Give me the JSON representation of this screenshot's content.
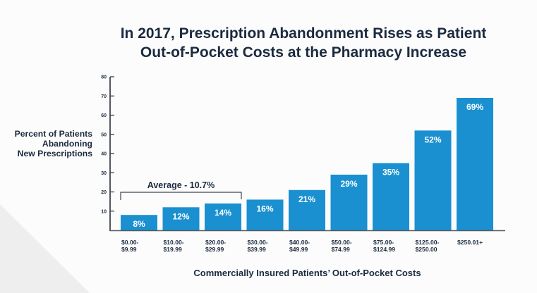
{
  "chart_data": {
    "type": "bar",
    "title": [
      "In 2017, Prescription Abandonment Rises as Patient",
      "Out-of-Pocket Costs at the Pharmacy Increase"
    ],
    "xlabel": "Commercially Insured Patients’ Out-of-Pocket Costs",
    "ylabel": [
      "Percent of Patients",
      "Abandoning",
      "New Prescriptions"
    ],
    "ylim": [
      0,
      80
    ],
    "yticks": [
      10,
      20,
      30,
      40,
      50,
      60,
      70,
      80
    ],
    "grid": false,
    "legend": "none",
    "categories": [
      [
        "$0.00-",
        "$9.99"
      ],
      [
        "$10.00-",
        "$19.99"
      ],
      [
        "$20.00-",
        "$29.99"
      ],
      [
        "$30.00-",
        "$39.99"
      ],
      [
        "$40.00-",
        "$49.99"
      ],
      [
        "$50.00-",
        "$74.99"
      ],
      [
        "$75.00-",
        "$124.99"
      ],
      [
        "$125.00-",
        "$250.00"
      ],
      [
        "$250.01+"
      ]
    ],
    "values": [
      8,
      12,
      14,
      16,
      21,
      29,
      35,
      52,
      69
    ],
    "data_labels": [
      "8%",
      "12%",
      "14%",
      "16%",
      "21%",
      "29%",
      "35%",
      "52%",
      "69%"
    ],
    "annotations": [
      {
        "text": "Average - 10.7%",
        "type": "bracket",
        "spans_categories": [
          0,
          2
        ]
      }
    ]
  },
  "colors": {
    "bar": "#1a90d0",
    "text": "#1b2a3e",
    "axis": "#2b2f35",
    "background": "#fcfcfd",
    "decor": "#eeeeef"
  }
}
